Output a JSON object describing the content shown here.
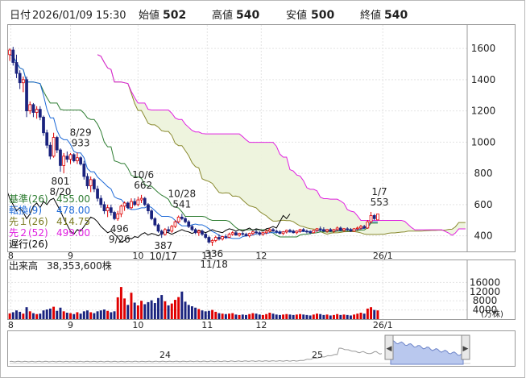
{
  "header": {
    "date_label": "日付",
    "datetime": "2026/01/09 15:30",
    "open_label": "始値",
    "open": "502",
    "high_label": "高値",
    "high": "540",
    "low_label": "安値",
    "low": "500",
    "close_label": "終値",
    "close": "540",
    "colors": {
      "high": "#e00000",
      "low": "#009000",
      "normal": "#222222"
    }
  },
  "indicators": [
    {
      "label": "基準(26)",
      "value": "455.00",
      "color": "#2e7d32"
    },
    {
      "label": "転換(9)",
      "value": "478.00",
      "color": "#1e6ad8"
    },
    {
      "label": "先１(26)",
      "value": "414.75",
      "color": "#7a7a20"
    },
    {
      "label": "先２(52)",
      "value": "499.00",
      "color": "#e020e0"
    },
    {
      "label": "遅行(26)",
      "value": "",
      "color": "#000000"
    }
  ],
  "volume_header": {
    "label": "出来高",
    "value": "38,353,600株"
  },
  "volume_unit": "(万株)",
  "navigator": {
    "labels": [
      "24",
      "25"
    ]
  },
  "chart_data": {
    "type": "candlestick",
    "price_axis": {
      "ticks": [
        400,
        600,
        800,
        1000,
        1200,
        1400,
        1600
      ],
      "range": [
        300,
        1750
      ]
    },
    "volume_axis": {
      "ticks": [
        4000,
        8000,
        12000,
        16000
      ],
      "range": [
        0,
        20000
      ],
      "unit": "万株"
    },
    "month_labels": [
      "8",
      "9",
      "10",
      "11",
      "12",
      "26/1"
    ],
    "month_label_x": [
      0.3,
      18.0,
      38.0,
      58.5,
      74.5,
      110.5
    ],
    "annotations": [
      {
        "text": "8/29",
        "value": "933",
        "x": 21,
        "price": 933,
        "pos": "above"
      },
      {
        "text": "801",
        "value": "8/20",
        "x": 15,
        "price": 801,
        "pos": "below"
      },
      {
        "text": "10/6",
        "value": "662",
        "x": 39.5,
        "price": 662,
        "pos": "above"
      },
      {
        "text": "496",
        "value": "9/26",
        "x": 32.5,
        "price": 496,
        "pos": "below"
      },
      {
        "text": "10/28",
        "value": "541",
        "x": 51,
        "price": 541,
        "pos": "above"
      },
      {
        "text": "387",
        "value": "10/17",
        "x": 45.5,
        "price": 387,
        "pos": "below"
      },
      {
        "text": "336",
        "value": "11/18",
        "x": 60.5,
        "price": 336,
        "pos": "below"
      },
      {
        "text": "1/7",
        "value": "553",
        "x": 109.5,
        "price": 553,
        "pos": "above"
      }
    ],
    "candles": [
      {
        "o": 1560,
        "h": 1600,
        "l": 1520,
        "c": 1590,
        "v": 2500
      },
      {
        "o": 1590,
        "h": 1610,
        "l": 1490,
        "c": 1510,
        "v": 3000
      },
      {
        "o": 1510,
        "h": 1560,
        "l": 1410,
        "c": 1440,
        "v": 3800
      },
      {
        "o": 1440,
        "h": 1460,
        "l": 1340,
        "c": 1380,
        "v": 3200
      },
      {
        "o": 1380,
        "h": 1420,
        "l": 1320,
        "c": 1400,
        "v": 2400
      },
      {
        "o": 1400,
        "h": 1420,
        "l": 1160,
        "c": 1200,
        "v": 5200
      },
      {
        "o": 1200,
        "h": 1260,
        "l": 1180,
        "c": 1240,
        "v": 3400
      },
      {
        "o": 1240,
        "h": 1250,
        "l": 1160,
        "c": 1190,
        "v": 2600
      },
      {
        "o": 1190,
        "h": 1230,
        "l": 1150,
        "c": 1210,
        "v": 2200
      },
      {
        "o": 1210,
        "h": 1230,
        "l": 1140,
        "c": 1160,
        "v": 2400
      },
      {
        "o": 1160,
        "h": 1170,
        "l": 1040,
        "c": 1060,
        "v": 3800
      },
      {
        "o": 1060,
        "h": 1080,
        "l": 960,
        "c": 980,
        "v": 4200
      },
      {
        "o": 980,
        "h": 1000,
        "l": 890,
        "c": 910,
        "v": 4600
      },
      {
        "o": 910,
        "h": 1060,
        "l": 900,
        "c": 1030,
        "v": 5400
      },
      {
        "o": 1030,
        "h": 1040,
        "l": 930,
        "c": 950,
        "v": 3600
      },
      {
        "o": 950,
        "h": 960,
        "l": 810,
        "c": 850,
        "v": 5000
      },
      {
        "o": 850,
        "h": 930,
        "l": 801,
        "c": 910,
        "v": 3400
      },
      {
        "o": 910,
        "h": 940,
        "l": 870,
        "c": 890,
        "v": 2800
      },
      {
        "o": 890,
        "h": 930,
        "l": 860,
        "c": 920,
        "v": 2600
      },
      {
        "o": 920,
        "h": 930,
        "l": 870,
        "c": 880,
        "v": 2200
      },
      {
        "o": 880,
        "h": 933,
        "l": 860,
        "c": 900,
        "v": 3000
      },
      {
        "o": 900,
        "h": 910,
        "l": 850,
        "c": 860,
        "v": 2400
      },
      {
        "o": 860,
        "h": 880,
        "l": 760,
        "c": 780,
        "v": 3400
      },
      {
        "o": 780,
        "h": 800,
        "l": 700,
        "c": 720,
        "v": 3800
      },
      {
        "o": 720,
        "h": 780,
        "l": 680,
        "c": 760,
        "v": 3000
      },
      {
        "o": 760,
        "h": 770,
        "l": 680,
        "c": 700,
        "v": 2600
      },
      {
        "o": 700,
        "h": 720,
        "l": 620,
        "c": 640,
        "v": 3400
      },
      {
        "o": 640,
        "h": 660,
        "l": 580,
        "c": 600,
        "v": 3800
      },
      {
        "o": 600,
        "h": 620,
        "l": 540,
        "c": 560,
        "v": 4200
      },
      {
        "o": 560,
        "h": 600,
        "l": 520,
        "c": 580,
        "v": 3600
      },
      {
        "o": 580,
        "h": 600,
        "l": 530,
        "c": 550,
        "v": 3000
      },
      {
        "o": 550,
        "h": 560,
        "l": 500,
        "c": 510,
        "v": 3400
      },
      {
        "o": 510,
        "h": 560,
        "l": 496,
        "c": 540,
        "v": 9500
      },
      {
        "o": 540,
        "h": 600,
        "l": 520,
        "c": 590,
        "v": 14000
      },
      {
        "o": 590,
        "h": 620,
        "l": 560,
        "c": 610,
        "v": 9000
      },
      {
        "o": 610,
        "h": 620,
        "l": 570,
        "c": 580,
        "v": 6200
      },
      {
        "o": 580,
        "h": 640,
        "l": 570,
        "c": 620,
        "v": 11500
      },
      {
        "o": 620,
        "h": 640,
        "l": 590,
        "c": 600,
        "v": 7200
      },
      {
        "o": 600,
        "h": 650,
        "l": 590,
        "c": 630,
        "v": 6000
      },
      {
        "o": 630,
        "h": 662,
        "l": 610,
        "c": 640,
        "v": 8000
      },
      {
        "o": 640,
        "h": 650,
        "l": 590,
        "c": 600,
        "v": 6500
      },
      {
        "o": 600,
        "h": 610,
        "l": 540,
        "c": 560,
        "v": 7400
      },
      {
        "o": 560,
        "h": 570,
        "l": 500,
        "c": 510,
        "v": 8200
      },
      {
        "o": 510,
        "h": 520,
        "l": 460,
        "c": 470,
        "v": 7000
      },
      {
        "o": 470,
        "h": 480,
        "l": 420,
        "c": 430,
        "v": 9200
      },
      {
        "o": 430,
        "h": 440,
        "l": 387,
        "c": 410,
        "v": 10500
      },
      {
        "o": 410,
        "h": 450,
        "l": 400,
        "c": 440,
        "v": 7800
      },
      {
        "o": 440,
        "h": 460,
        "l": 420,
        "c": 430,
        "v": 6000
      },
      {
        "o": 430,
        "h": 470,
        "l": 420,
        "c": 460,
        "v": 6800
      },
      {
        "o": 460,
        "h": 500,
        "l": 450,
        "c": 490,
        "v": 8400
      },
      {
        "o": 490,
        "h": 530,
        "l": 480,
        "c": 520,
        "v": 9600
      },
      {
        "o": 520,
        "h": 541,
        "l": 500,
        "c": 510,
        "v": 12000
      },
      {
        "o": 510,
        "h": 520,
        "l": 480,
        "c": 490,
        "v": 7600
      },
      {
        "o": 490,
        "h": 500,
        "l": 450,
        "c": 460,
        "v": 6200
      },
      {
        "o": 460,
        "h": 470,
        "l": 430,
        "c": 440,
        "v": 5600
      },
      {
        "o": 440,
        "h": 450,
        "l": 410,
        "c": 420,
        "v": 5000
      },
      {
        "o": 420,
        "h": 440,
        "l": 400,
        "c": 430,
        "v": 4400
      },
      {
        "o": 430,
        "h": 440,
        "l": 400,
        "c": 410,
        "v": 3800
      },
      {
        "o": 410,
        "h": 420,
        "l": 380,
        "c": 390,
        "v": 3400
      },
      {
        "o": 390,
        "h": 400,
        "l": 350,
        "c": 360,
        "v": 3600
      },
      {
        "o": 360,
        "h": 380,
        "l": 336,
        "c": 370,
        "v": 4000
      },
      {
        "o": 370,
        "h": 400,
        "l": 360,
        "c": 390,
        "v": 3200
      },
      {
        "o": 390,
        "h": 410,
        "l": 370,
        "c": 380,
        "v": 2600
      },
      {
        "o": 380,
        "h": 400,
        "l": 370,
        "c": 395,
        "v": 2400
      },
      {
        "o": 395,
        "h": 410,
        "l": 380,
        "c": 390,
        "v": 2200
      },
      {
        "o": 390,
        "h": 420,
        "l": 385,
        "c": 410,
        "v": 2400
      },
      {
        "o": 410,
        "h": 430,
        "l": 400,
        "c": 420,
        "v": 2600
      },
      {
        "o": 420,
        "h": 430,
        "l": 400,
        "c": 405,
        "v": 2000
      },
      {
        "o": 405,
        "h": 420,
        "l": 395,
        "c": 415,
        "v": 1800
      },
      {
        "o": 415,
        "h": 425,
        "l": 400,
        "c": 410,
        "v": 2000
      },
      {
        "o": 410,
        "h": 420,
        "l": 395,
        "c": 400,
        "v": 1800
      },
      {
        "o": 400,
        "h": 420,
        "l": 390,
        "c": 415,
        "v": 2200
      },
      {
        "o": 415,
        "h": 430,
        "l": 405,
        "c": 425,
        "v": 2600
      },
      {
        "o": 425,
        "h": 440,
        "l": 410,
        "c": 420,
        "v": 2400
      },
      {
        "o": 420,
        "h": 430,
        "l": 400,
        "c": 410,
        "v": 2000
      },
      {
        "o": 410,
        "h": 425,
        "l": 400,
        "c": 420,
        "v": 1800
      },
      {
        "o": 420,
        "h": 440,
        "l": 410,
        "c": 430,
        "v": 2200
      },
      {
        "o": 430,
        "h": 450,
        "l": 420,
        "c": 440,
        "v": 2800
      },
      {
        "o": 440,
        "h": 450,
        "l": 425,
        "c": 430,
        "v": 2400
      },
      {
        "o": 430,
        "h": 440,
        "l": 415,
        "c": 425,
        "v": 2000
      },
      {
        "o": 425,
        "h": 435,
        "l": 410,
        "c": 415,
        "v": 1800
      },
      {
        "o": 415,
        "h": 430,
        "l": 405,
        "c": 425,
        "v": 2000
      },
      {
        "o": 425,
        "h": 440,
        "l": 415,
        "c": 435,
        "v": 2200
      },
      {
        "o": 435,
        "h": 445,
        "l": 420,
        "c": 430,
        "v": 2000
      },
      {
        "o": 430,
        "h": 440,
        "l": 415,
        "c": 420,
        "v": 1800
      },
      {
        "o": 420,
        "h": 435,
        "l": 410,
        "c": 430,
        "v": 2000
      },
      {
        "o": 430,
        "h": 445,
        "l": 420,
        "c": 440,
        "v": 2200
      },
      {
        "o": 440,
        "h": 450,
        "l": 425,
        "c": 430,
        "v": 2000
      },
      {
        "o": 430,
        "h": 440,
        "l": 415,
        "c": 425,
        "v": 1800
      },
      {
        "o": 425,
        "h": 435,
        "l": 410,
        "c": 420,
        "v": 1600
      },
      {
        "o": 420,
        "h": 440,
        "l": 415,
        "c": 435,
        "v": 2000
      },
      {
        "o": 435,
        "h": 450,
        "l": 425,
        "c": 445,
        "v": 2400
      },
      {
        "o": 445,
        "h": 460,
        "l": 430,
        "c": 440,
        "v": 2200
      },
      {
        "o": 440,
        "h": 455,
        "l": 425,
        "c": 430,
        "v": 1800
      },
      {
        "o": 430,
        "h": 445,
        "l": 420,
        "c": 440,
        "v": 2000
      },
      {
        "o": 440,
        "h": 450,
        "l": 425,
        "c": 430,
        "v": 1600
      },
      {
        "o": 430,
        "h": 445,
        "l": 420,
        "c": 440,
        "v": 1800
      },
      {
        "o": 440,
        "h": 460,
        "l": 430,
        "c": 450,
        "v": 2200
      },
      {
        "o": 450,
        "h": 460,
        "l": 430,
        "c": 435,
        "v": 1800
      },
      {
        "o": 435,
        "h": 450,
        "l": 425,
        "c": 445,
        "v": 2000
      },
      {
        "o": 445,
        "h": 455,
        "l": 430,
        "c": 440,
        "v": 1800
      },
      {
        "o": 440,
        "h": 450,
        "l": 425,
        "c": 430,
        "v": 1600
      },
      {
        "o": 430,
        "h": 450,
        "l": 425,
        "c": 445,
        "v": 2000
      },
      {
        "o": 445,
        "h": 460,
        "l": 435,
        "c": 450,
        "v": 2400
      },
      {
        "o": 450,
        "h": 470,
        "l": 440,
        "c": 460,
        "v": 2800
      },
      {
        "o": 460,
        "h": 470,
        "l": 445,
        "c": 450,
        "v": 2400
      },
      {
        "o": 450,
        "h": 500,
        "l": 445,
        "c": 490,
        "v": 4600
      },
      {
        "o": 490,
        "h": 553,
        "l": 480,
        "c": 530,
        "v": 5200
      },
      {
        "o": 530,
        "h": 540,
        "l": 500,
        "c": 510,
        "v": 4000
      },
      {
        "o": 502,
        "h": 540,
        "l": 500,
        "c": 540,
        "v": 3800
      }
    ]
  }
}
